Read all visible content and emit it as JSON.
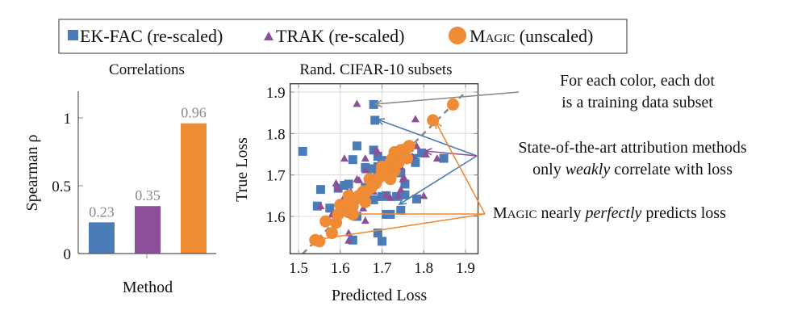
{
  "colors": {
    "ekfac": "#4a7db8",
    "trak": "#8c509b",
    "magic": "#ef8a35",
    "gray": "#8a8a8a",
    "grid": "#d9d9d9"
  },
  "legend": {
    "items": [
      {
        "label": "EK-FAC (re-scaled)",
        "marker": "square",
        "series": "ekfac"
      },
      {
        "label": "TRAK (re-scaled)",
        "marker": "triangle",
        "series": "trak"
      },
      {
        "label_first": "M",
        "label_smallcaps": "AGIC",
        "label_rest": " (unscaled)",
        "marker": "circle",
        "series": "magic"
      }
    ]
  },
  "annotations": {
    "subset_line1": "For each color, each dot",
    "subset_line2": "is a training data subset",
    "weak_line1": "State-of-the-art attribution methods",
    "weak_line2_pre": "only ",
    "weak_line2_em": "weakly",
    "weak_line2_post": " correlate with loss",
    "magic_first": "M",
    "magic_smallcaps": "AGIC",
    "magic_pre": " nearly ",
    "magic_em": "perfectly",
    "magic_post": " predicts loss"
  },
  "chart_data": [
    {
      "type": "bar",
      "title": "Correlations",
      "xlabel": "Method",
      "ylabel": "Spearman ρ",
      "categories": [
        "EK-FAC",
        "TRAK",
        "MAGIC"
      ],
      "values": [
        0.23,
        0.35,
        0.96
      ],
      "value_labels": [
        "0.23",
        "0.35",
        "0.96"
      ],
      "bar_colors": [
        "#4a7db8",
        "#8c509b",
        "#ef8a35"
      ],
      "ylim": [
        0,
        1.2
      ],
      "yticks": [
        0,
        0.5,
        1
      ],
      "ytick_labels": [
        "0",
        "0.5",
        "1"
      ],
      "grid": false
    },
    {
      "type": "scatter",
      "title": "Rand. CIFAR-10 subsets",
      "xlabel": "Predicted Loss",
      "ylabel": "True Loss",
      "xlim": [
        1.48,
        1.93
      ],
      "ylim": [
        1.51,
        1.92
      ],
      "xticks": [
        1.5,
        1.6,
        1.7,
        1.8,
        1.9
      ],
      "xtick_labels": [
        "1.5",
        "1.6",
        "1.7",
        "1.8",
        "1.9"
      ],
      "yticks": [
        1.6,
        1.7,
        1.8,
        1.9
      ],
      "ytick_labels": [
        "1.6",
        "1.7",
        "1.8",
        "1.9"
      ],
      "grid": true,
      "diagonal": {
        "from": [
          1.5,
          1.5
        ],
        "to": [
          1.9,
          1.9
        ],
        "style": "dashed"
      },
      "series": [
        {
          "name": "EK-FAC (re-scaled)",
          "marker": "square",
          "color": "#4a7db8",
          "points": [
            [
              1.51,
              1.757
            ],
            [
              1.68,
              1.87
            ],
            [
              1.683,
              1.832
            ],
            [
              1.64,
              1.77
            ],
            [
              1.68,
              1.76
            ],
            [
              1.63,
              1.737
            ],
            [
              1.69,
              1.745
            ],
            [
              1.7,
              1.735
            ],
            [
              1.687,
              1.715
            ],
            [
              1.66,
              1.718
            ],
            [
              1.67,
              1.715
            ],
            [
              1.69,
              1.7
            ],
            [
              1.745,
              1.705
            ],
            [
              1.755,
              1.678
            ],
            [
              1.61,
              1.675
            ],
            [
              1.62,
              1.678
            ],
            [
              1.595,
              1.668
            ],
            [
              1.553,
              1.665
            ],
            [
              1.575,
              1.62
            ],
            [
              1.545,
              1.625
            ],
            [
              1.64,
              1.6
            ],
            [
              1.68,
              1.64
            ],
            [
              1.7,
              1.648
            ],
            [
              1.71,
              1.65
            ],
            [
              1.735,
              1.648
            ],
            [
              1.755,
              1.652
            ],
            [
              1.783,
              1.642
            ],
            [
              1.72,
              1.605
            ],
            [
              1.71,
              1.605
            ],
            [
              1.745,
              1.615
            ],
            [
              1.63,
              1.543
            ],
            [
              1.69,
              1.56
            ],
            [
              1.7,
              1.54
            ],
            [
              1.765,
              1.767
            ],
            [
              1.795,
              1.753
            ],
            [
              1.775,
              1.74
            ],
            [
              1.78,
              1.73
            ],
            [
              1.848,
              1.74
            ],
            [
              1.66,
              1.67
            ],
            [
              1.69,
              1.72
            ]
          ]
        },
        {
          "name": "TRAK (re-scaled)",
          "marker": "triangle",
          "color": "#8c509b",
          "points": [
            [
              1.64,
              1.872
            ],
            [
              1.78,
              1.835
            ],
            [
              1.61,
              1.74
            ],
            [
              1.66,
              1.74
            ],
            [
              1.685,
              1.76
            ],
            [
              1.69,
              1.755
            ],
            [
              1.76,
              1.748
            ],
            [
              1.772,
              1.745
            ],
            [
              1.783,
              1.77
            ],
            [
              1.805,
              1.75
            ],
            [
              1.832,
              1.74
            ],
            [
              1.59,
              1.68
            ],
            [
              1.595,
              1.668
            ],
            [
              1.61,
              1.648
            ],
            [
              1.625,
              1.66
            ],
            [
              1.64,
              1.69
            ],
            [
              1.645,
              1.688
            ],
            [
              1.66,
              1.712
            ],
            [
              1.72,
              1.705
            ],
            [
              1.745,
              1.72
            ],
            [
              1.752,
              1.695
            ],
            [
              1.75,
              1.69
            ],
            [
              1.745,
              1.665
            ],
            [
              1.74,
              1.65
            ],
            [
              1.72,
              1.645
            ],
            [
              1.71,
              1.652
            ],
            [
              1.8,
              1.65
            ],
            [
              1.553,
              1.625
            ],
            [
              1.58,
              1.605
            ],
            [
              1.66,
              1.59
            ],
            [
              1.655,
              1.62
            ],
            [
              1.62,
              1.56
            ],
            [
              1.62,
              1.542
            ],
            [
              1.68,
              1.66
            ]
          ]
        },
        {
          "name": "MAGIC (unscaled)",
          "marker": "circle",
          "color": "#ef8a35",
          "points": [
            [
              1.87,
              1.87
            ],
            [
              1.822,
              1.832
            ],
            [
              1.765,
              1.77
            ],
            [
              1.76,
              1.765
            ],
            [
              1.745,
              1.76
            ],
            [
              1.75,
              1.745
            ],
            [
              1.73,
              1.755
            ],
            [
              1.725,
              1.74
            ],
            [
              1.74,
              1.73
            ],
            [
              1.76,
              1.74
            ],
            [
              1.72,
              1.73
            ],
            [
              1.715,
              1.715
            ],
            [
              1.73,
              1.71
            ],
            [
              1.7,
              1.712
            ],
            [
              1.705,
              1.7
            ],
            [
              1.695,
              1.695
            ],
            [
              1.685,
              1.68
            ],
            [
              1.67,
              1.69
            ],
            [
              1.675,
              1.67
            ],
            [
              1.72,
              1.69
            ],
            [
              1.665,
              1.662
            ],
            [
              1.655,
              1.66
            ],
            [
              1.645,
              1.65
            ],
            [
              1.65,
              1.645
            ],
            [
              1.635,
              1.64
            ],
            [
              1.62,
              1.65
            ],
            [
              1.63,
              1.625
            ],
            [
              1.66,
              1.635
            ],
            [
              1.655,
              1.655
            ],
            [
              1.62,
              1.61
            ],
            [
              1.615,
              1.625
            ],
            [
              1.6,
              1.628
            ],
            [
              1.595,
              1.605
            ],
            [
              1.63,
              1.605
            ],
            [
              1.565,
              1.588
            ],
            [
              1.59,
              1.585
            ],
            [
              1.58,
              1.56
            ],
            [
              1.54,
              1.543
            ],
            [
              1.55,
              1.54
            ],
            [
              1.7,
              1.72
            ]
          ]
        }
      ]
    }
  ]
}
